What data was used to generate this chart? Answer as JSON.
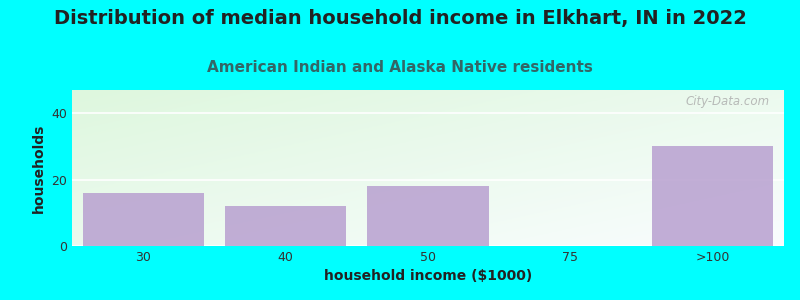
{
  "title": "Distribution of median household income in Elkhart, IN in 2022",
  "subtitle": "American Indian and Alaska Native residents",
  "xlabel": "household income ($1000)",
  "ylabel": "households",
  "categories": [
    "30",
    "40",
    "50",
    "75",
    ">100"
  ],
  "values": [
    16,
    12,
    18,
    0,
    30
  ],
  "bar_color": "#b8a0d0",
  "ylim": [
    0,
    47
  ],
  "yticks": [
    0,
    20,
    40
  ],
  "bg_color": "#00ffff",
  "title_fontsize": 14,
  "subtitle_fontsize": 11,
  "subtitle_color": "#336666",
  "axis_label_fontsize": 10,
  "tick_fontsize": 9,
  "watermark_text": "City-Data.com",
  "watermark_color": "#aaaaaa",
  "grid_color": "#e8e8e8"
}
